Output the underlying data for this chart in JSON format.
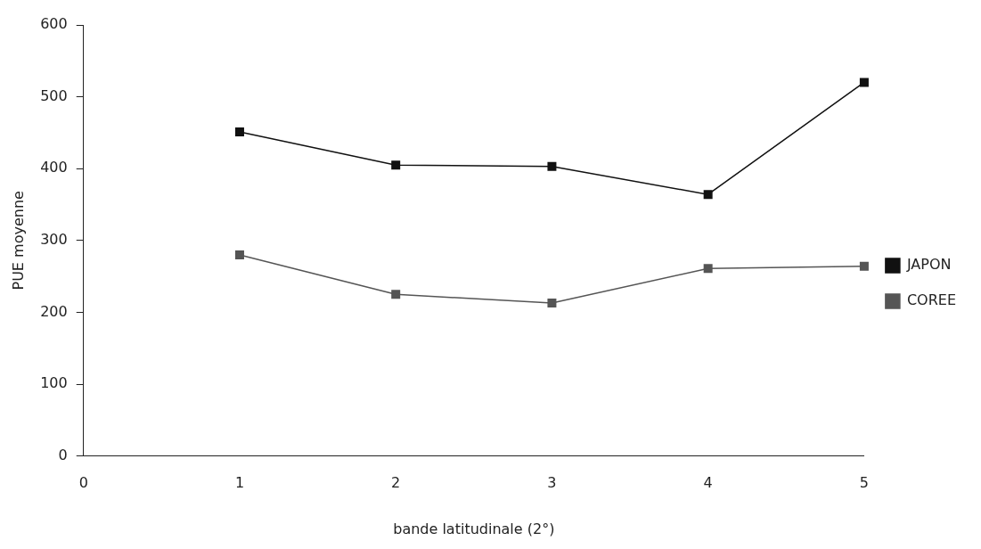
{
  "chart_data": {
    "type": "line",
    "xlabel": "bande latitudinale (2°)",
    "ylabel": "PUE moyenne",
    "x": [
      1,
      2,
      3,
      4,
      5
    ],
    "series": [
      {
        "name": "JAPON",
        "color": "#111111",
        "values": [
          451,
          405,
          403,
          364,
          520
        ]
      },
      {
        "name": "COREE",
        "color": "#555555",
        "values": [
          280,
          225,
          213,
          261,
          264
        ]
      }
    ],
    "xlim": [
      0,
      5
    ],
    "xticks": [
      0,
      1,
      2,
      3,
      4,
      5
    ],
    "ylim": [
      0,
      600
    ],
    "yticks": [
      0,
      100,
      200,
      300,
      400,
      500,
      600
    ],
    "grid": false,
    "legend": "right",
    "marker": "square",
    "line_style": "solid"
  }
}
